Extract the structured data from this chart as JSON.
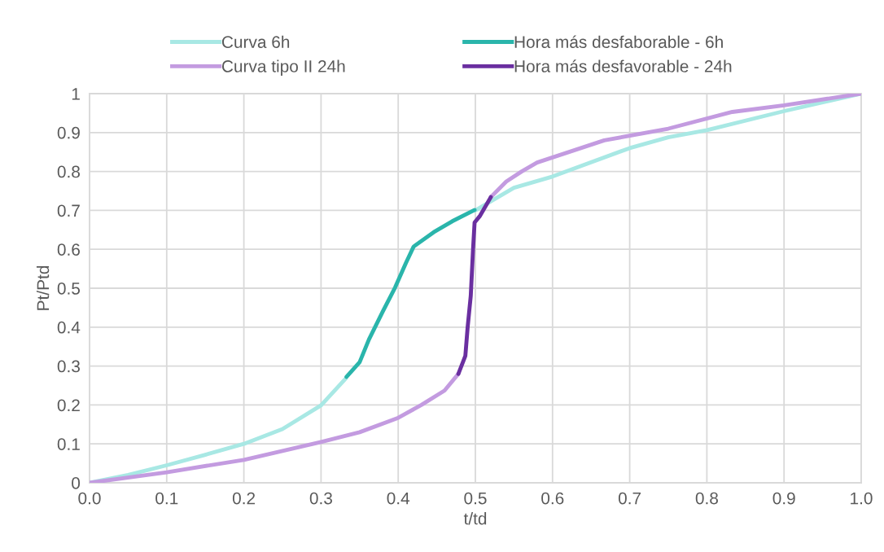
{
  "chart_data": {
    "type": "line",
    "xlabel": "t/td",
    "ylabel": "Pt/Ptd",
    "series": [
      {
        "name": "Curva 6h",
        "color": "#a8e8e4",
        "x": [
          0,
          0.05,
          0.1,
          0.15,
          0.2,
          0.25,
          0.3,
          0.332,
          0.4,
          0.5,
          0.55,
          0.6,
          0.7,
          0.75,
          0.8,
          0.9,
          1.0
        ],
        "values": [
          0,
          0.02,
          0.045,
          0.072,
          0.1,
          0.138,
          0.199,
          0.268,
          null,
          0.7,
          0.758,
          0.787,
          0.86,
          0.888,
          0.906,
          0.955,
          1.0
        ]
      },
      {
        "name": "Curva tipo II 24h",
        "color": "#c39be0",
        "x": [
          0,
          0.1,
          0.2,
          0.3,
          0.35,
          0.4,
          0.43,
          0.46,
          0.478,
          0.5,
          0.52,
          0.54,
          0.56,
          0.58,
          0.667,
          0.75,
          0.833,
          0.9,
          1.0
        ],
        "values": [
          0,
          0.027,
          0.059,
          0.105,
          0.13,
          0.167,
          0.2,
          0.237,
          0.28,
          null,
          0.734,
          0.774,
          0.8,
          0.823,
          0.88,
          0.91,
          0.953,
          0.97,
          1.0
        ]
      },
      {
        "name": "Hora más desfaborable - 6h",
        "color": "#2ab5ab",
        "x": [
          0.333,
          0.35,
          0.362,
          0.38,
          0.396,
          0.41,
          0.42,
          0.446,
          0.47,
          0.499
        ],
        "values": [
          0.272,
          0.31,
          0.368,
          0.44,
          0.502,
          0.565,
          0.607,
          0.644,
          0.672,
          0.701
        ]
      },
      {
        "name": "Hora más desfavorable - 24h",
        "color": "#6a2fa0",
        "x": [
          0.478,
          0.487,
          0.49,
          0.494,
          0.497,
          0.499,
          0.506,
          0.52
        ],
        "values": [
          0.28,
          0.326,
          0.4,
          0.48,
          0.6,
          0.669,
          0.686,
          0.734
        ]
      }
    ],
    "xlim": [
      0,
      1.0
    ],
    "ylim": [
      0,
      1
    ],
    "xticks": [
      {
        "value": 0,
        "label": "0.0"
      },
      0.1,
      0.2,
      0.3,
      0.4,
      0.5,
      0.6,
      0.7,
      0.8,
      0.9,
      {
        "value": 1.0,
        "label": "1.0"
      }
    ],
    "yticks": [
      0,
      0.1,
      0.2,
      0.3,
      0.4,
      0.5,
      0.6,
      0.7,
      0.8,
      0.9,
      1
    ],
    "grid": true,
    "legend": "top",
    "marker": "none",
    "line_style": "solid"
  }
}
